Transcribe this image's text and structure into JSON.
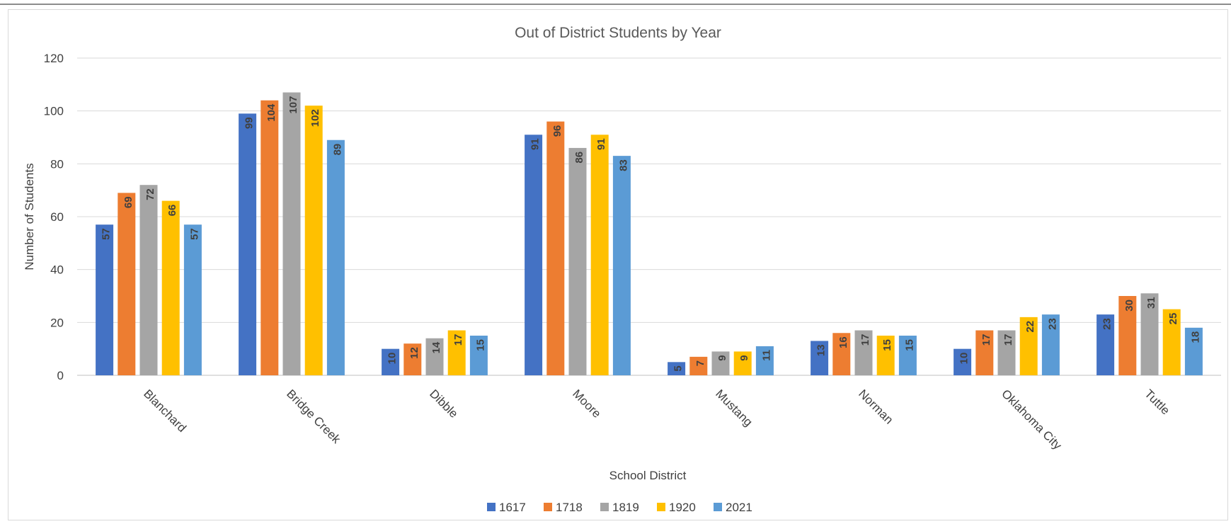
{
  "chart_data": {
    "type": "bar",
    "title": "Out of District Students by Year",
    "xlabel": "School District",
    "ylabel": "Number of Students",
    "ylim": [
      0,
      120
    ],
    "yticks": [
      0,
      20,
      40,
      60,
      80,
      100,
      120
    ],
    "grid": true,
    "legend_position": "bottom",
    "categories": [
      "Blanchard",
      "Bridge Creek",
      "Dibble",
      "Moore",
      "Mustang",
      "Norman",
      "Oklahoma City",
      "Tuttle"
    ],
    "series": [
      {
        "name": "1617",
        "color": "#4472c4",
        "values": [
          57,
          99,
          10,
          91,
          5,
          13,
          10,
          23
        ]
      },
      {
        "name": "1718",
        "color": "#ed7d31",
        "values": [
          69,
          104,
          12,
          96,
          7,
          16,
          17,
          30
        ]
      },
      {
        "name": "1819",
        "color": "#a5a5a5",
        "values": [
          72,
          107,
          14,
          86,
          9,
          17,
          17,
          31
        ]
      },
      {
        "name": "1920",
        "color": "#ffc000",
        "values": [
          66,
          102,
          17,
          91,
          9,
          15,
          22,
          25
        ]
      },
      {
        "name": "2021",
        "color": "#5b9bd5",
        "values": [
          57,
          89,
          15,
          83,
          11,
          15,
          23,
          18
        ]
      }
    ]
  }
}
